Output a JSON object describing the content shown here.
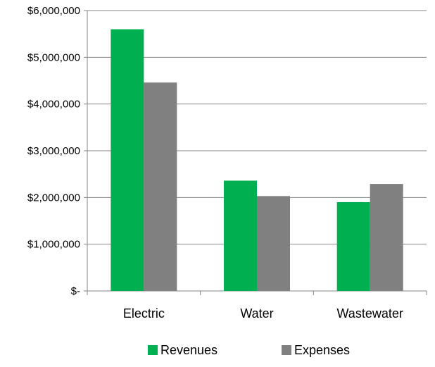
{
  "chart_data": {
    "type": "bar",
    "title": "",
    "xlabel": "",
    "ylabel": "",
    "categories": [
      "Electric",
      "Water",
      "Wastewater"
    ],
    "series": [
      {
        "name": "Revenues",
        "color": "#00b050",
        "values": [
          5600000,
          2360000,
          1900000
        ]
      },
      {
        "name": "Expenses",
        "color": "#808080",
        "values": [
          4460000,
          2030000,
          2290000
        ]
      }
    ],
    "y_ticks": [
      0,
      1000000,
      2000000,
      3000000,
      4000000,
      5000000,
      6000000
    ],
    "y_tick_labels": [
      "$-",
      "$1,000,000",
      "$2,000,000",
      "$3,000,000",
      "$4,000,000",
      "$5,000,000",
      "$6,000,000"
    ],
    "ylim": [
      0,
      6000000
    ],
    "grid": "horizontal",
    "legend_position": "bottom"
  }
}
